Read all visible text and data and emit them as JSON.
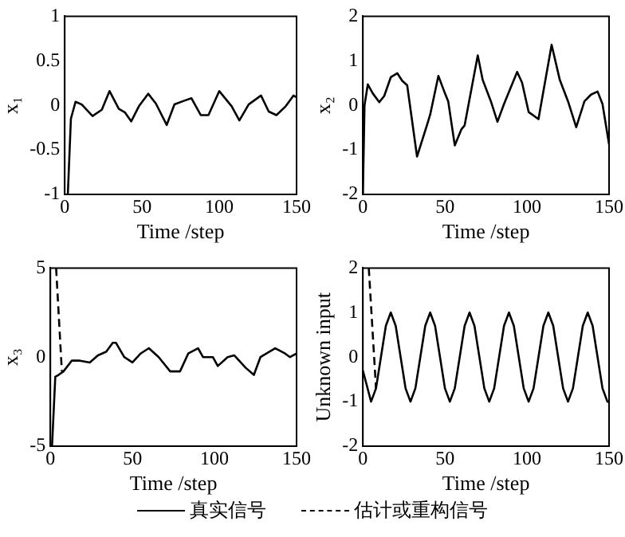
{
  "chart_data": [
    {
      "type": "line",
      "xlabel": "Time /step",
      "ylabel": "x₁",
      "xlim": [
        0,
        150
      ],
      "xticks": [
        0,
        50,
        100,
        150
      ],
      "ylim": [
        -1,
        1
      ],
      "yticks": [
        -1,
        -0.5,
        0,
        0.5,
        1
      ],
      "grid": false,
      "marker": "none",
      "series": [
        {
          "color": "#000000",
          "line_style": "solid",
          "x": [
            2,
            4,
            7,
            11,
            18,
            24,
            29,
            35,
            39,
            43,
            48,
            54,
            59,
            66,
            71,
            77,
            82,
            88,
            93,
            100,
            108,
            113,
            119,
            127,
            132,
            137,
            143,
            148,
            150
          ],
          "values": [
            -1,
            -0.15,
            0.04,
            0.01,
            -0.12,
            -0.05,
            0.16,
            -0.04,
            -0.08,
            -0.18,
            -0.01,
            0.13,
            0.02,
            -0.22,
            0.01,
            0.05,
            0.08,
            -0.11,
            -0.11,
            0.16,
            -0.01,
            -0.17,
            0.01,
            0.11,
            -0.07,
            -0.11,
            -0.01,
            0.11,
            0.09
          ]
        }
      ]
    },
    {
      "type": "line",
      "xlabel": "Time /step",
      "ylabel": "x₂",
      "xlim": [
        0,
        150
      ],
      "xticks": [
        0,
        50,
        100,
        150
      ],
      "ylim": [
        -2,
        2
      ],
      "yticks": [
        -2,
        -1,
        0,
        1,
        2
      ],
      "grid": false,
      "marker": "none",
      "series": [
        {
          "color": "#000000",
          "line_style": "solid",
          "x": [
            0,
            1,
            3,
            6,
            10,
            13,
            17,
            21,
            24,
            27,
            33,
            39,
            41,
            46,
            50,
            52,
            56,
            60,
            62,
            70,
            73,
            78,
            82,
            86,
            94,
            97,
            101,
            107,
            115,
            120,
            125,
            130,
            135,
            139,
            143,
            146,
            150
          ],
          "values": [
            -2,
            0,
            0.47,
            0.27,
            0.07,
            0.21,
            0.63,
            0.72,
            0.55,
            0.45,
            -1.15,
            -0.45,
            -0.21,
            0.66,
            0.27,
            0.09,
            -0.9,
            -0.54,
            -0.45,
            1.12,
            0.57,
            0.09,
            -0.37,
            0.03,
            0.75,
            0.51,
            -0.15,
            -0.31,
            1.36,
            0.57,
            0.09,
            -0.49,
            0.09,
            0.24,
            0.31,
            0.03,
            -0.88
          ]
        }
      ]
    },
    {
      "type": "line",
      "xlabel": "Time /step",
      "ylabel": "x₃",
      "xlim": [
        0,
        150
      ],
      "xticks": [
        0,
        50,
        100,
        150
      ],
      "ylim": [
        -5,
        5
      ],
      "yticks": [
        -5,
        0,
        5
      ],
      "grid": false,
      "marker": "none",
      "series": [
        {
          "color": "#000000",
          "line_style": "solid",
          "x": [
            1,
            3,
            5,
            8,
            13,
            18,
            24,
            29,
            34,
            38,
            40,
            45,
            50,
            55,
            60,
            66,
            73,
            79,
            84,
            90,
            93,
            99,
            102,
            108,
            112,
            119,
            124,
            128,
            137,
            143,
            146,
            150
          ],
          "values": [
            -5,
            -1.1,
            -1,
            -0.8,
            -0.2,
            -0.2,
            -0.3,
            0.1,
            0.3,
            0.8,
            0.8,
            0,
            -0.3,
            0.2,
            0.5,
            0,
            -0.8,
            -0.8,
            0.2,
            0.5,
            0,
            0,
            -0.5,
            0,
            0.1,
            -0.6,
            -1,
            0,
            0.5,
            0.2,
            0,
            0.2
          ]
        },
        {
          "color": "#000000",
          "line_style": "dashed",
          "x": [
            3.5,
            7
          ],
          "values": [
            5,
            -0.8
          ]
        }
      ]
    },
    {
      "type": "line",
      "xlabel": "Time /step",
      "ylabel": "Unknown input",
      "xlim": [
        0,
        150
      ],
      "xticks": [
        0,
        50,
        100,
        150
      ],
      "ylim": [
        -2,
        2
      ],
      "yticks": [
        -2,
        -1,
        0,
        1,
        2
      ],
      "grid": false,
      "legend": "bottom",
      "marker": "none",
      "series": [
        {
          "name": "真实信号",
          "color": "#000000",
          "line_style": "solid",
          "x": [
            0,
            5,
            8,
            11,
            14,
            17,
            20,
            23,
            26,
            29,
            32,
            35,
            38,
            41,
            44,
            47,
            50,
            53,
            56,
            59,
            62,
            65,
            68,
            71,
            74,
            77,
            80,
            83,
            86,
            89,
            92,
            95,
            98,
            101,
            104,
            107,
            110,
            113,
            116,
            119,
            122,
            125,
            128,
            131,
            134,
            137,
            140,
            143,
            146,
            149,
            150
          ],
          "values": [
            -0.3,
            -1,
            -0.7,
            0,
            0.7,
            1,
            0.7,
            0,
            -0.7,
            -1,
            -0.7,
            0,
            0.7,
            1,
            0.7,
            0,
            -0.7,
            -1,
            -0.7,
            0,
            0.7,
            1,
            0.7,
            0,
            -0.7,
            -1,
            -0.7,
            0,
            0.7,
            1,
            0.7,
            0,
            -0.7,
            -1,
            -0.7,
            0,
            0.7,
            1,
            0.7,
            0,
            -0.7,
            -1,
            -0.7,
            0,
            0.7,
            1,
            0.7,
            0,
            -0.7,
            -1,
            -1
          ]
        },
        {
          "name": "估计或重构信号",
          "color": "#000000",
          "line_style": "dashed",
          "x": [
            3.6,
            8
          ],
          "values": [
            2,
            -0.7
          ]
        }
      ]
    }
  ]
}
